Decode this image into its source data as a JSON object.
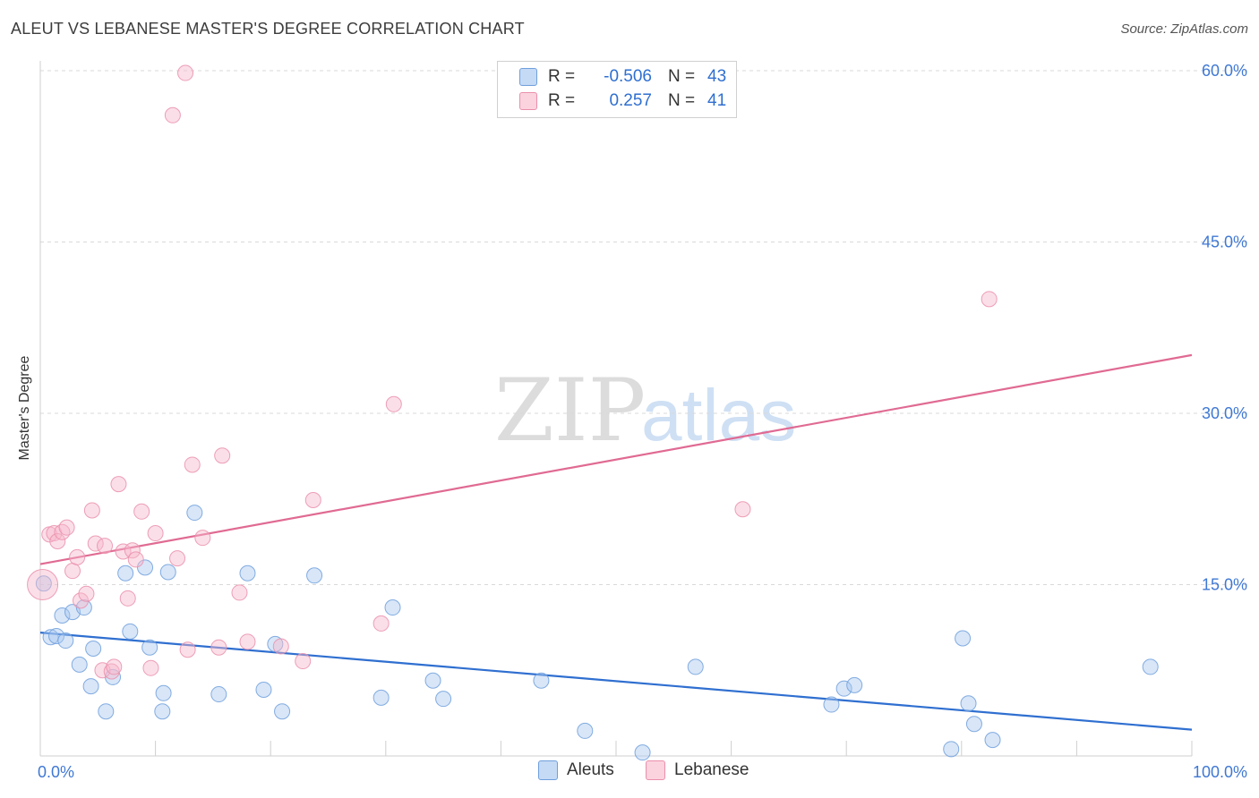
{
  "title": "ALEUT VS LEBANESE MASTER'S DEGREE CORRELATION CHART",
  "source": "Source: ZipAtlas.com",
  "watermark": {
    "zip": "ZIP",
    "atlas": "atlas"
  },
  "legend_top": {
    "rows": [
      {
        "r_label": "R =",
        "r_value": "-0.506",
        "n_label": "N =",
        "n_value": "43"
      },
      {
        "r_label": "R =",
        "r_value": "0.257",
        "n_label": "N =",
        "n_value": "41"
      }
    ]
  },
  "legend_bottom": {
    "aleuts": "Aleuts",
    "lebanese": "Lebanese"
  },
  "colors": {
    "aleuts_fill": "#a9c8f0",
    "aleuts_stroke": "#6f9fdc",
    "aleuts_line": "#2f6fd0",
    "lebanese_fill": "#f6b8cb",
    "lebanese_stroke": "#ea8fab",
    "lebanese_line": "#e06a93",
    "tick_label": "#3f78d4",
    "grid": "#d9d9d9"
  },
  "chart_data": {
    "type": "scatter",
    "title": "ALEUT VS LEBANESE MASTER'S DEGREE CORRELATION CHART",
    "xlabel": "",
    "ylabel": "Master's Degree",
    "xlim": [
      0,
      100
    ],
    "ylim": [
      0,
      60
    ],
    "x_tick_labels": [
      "0.0%",
      "100.0%"
    ],
    "y_ticks": [
      15,
      30,
      45,
      60
    ],
    "y_tick_labels": [
      "15.0%",
      "30.0%",
      "45.0%",
      "60.0%"
    ],
    "series": [
      {
        "name": "Aleuts",
        "color": "#2f6fd0",
        "r": -0.506,
        "n": 43,
        "trend": {
          "x": [
            0,
            100
          ],
          "y": [
            10.8,
            2.3
          ]
        },
        "points": [
          {
            "x": 0.3,
            "y": 15.1
          },
          {
            "x": 0.9,
            "y": 10.4
          },
          {
            "x": 1.4,
            "y": 10.5
          },
          {
            "x": 1.9,
            "y": 12.3
          },
          {
            "x": 2.2,
            "y": 10.1
          },
          {
            "x": 2.8,
            "y": 12.6
          },
          {
            "x": 3.4,
            "y": 8.0
          },
          {
            "x": 3.8,
            "y": 13.0
          },
          {
            "x": 4.4,
            "y": 6.1
          },
          {
            "x": 4.6,
            "y": 9.4
          },
          {
            "x": 5.7,
            "y": 3.9
          },
          {
            "x": 6.3,
            "y": 6.9
          },
          {
            "x": 7.4,
            "y": 16.0
          },
          {
            "x": 7.8,
            "y": 10.9
          },
          {
            "x": 9.1,
            "y": 16.5
          },
          {
            "x": 9.5,
            "y": 9.5
          },
          {
            "x": 10.7,
            "y": 5.5
          },
          {
            "x": 10.6,
            "y": 3.9
          },
          {
            "x": 11.1,
            "y": 16.1
          },
          {
            "x": 13.4,
            "y": 21.3
          },
          {
            "x": 15.5,
            "y": 5.4
          },
          {
            "x": 18.0,
            "y": 16.0
          },
          {
            "x": 19.4,
            "y": 5.8
          },
          {
            "x": 20.4,
            "y": 9.8
          },
          {
            "x": 21.0,
            "y": 3.9
          },
          {
            "x": 23.8,
            "y": 15.8
          },
          {
            "x": 29.6,
            "y": 5.1
          },
          {
            "x": 30.6,
            "y": 13.0
          },
          {
            "x": 34.1,
            "y": 6.6
          },
          {
            "x": 35.0,
            "y": 5.0
          },
          {
            "x": 43.5,
            "y": 6.6
          },
          {
            "x": 47.3,
            "y": 2.2
          },
          {
            "x": 52.3,
            "y": 0.3
          },
          {
            "x": 56.9,
            "y": 7.8
          },
          {
            "x": 68.7,
            "y": 4.5
          },
          {
            "x": 69.8,
            "y": 5.9
          },
          {
            "x": 70.7,
            "y": 6.2
          },
          {
            "x": 79.1,
            "y": 0.6
          },
          {
            "x": 80.1,
            "y": 10.3
          },
          {
            "x": 80.6,
            "y": 4.6
          },
          {
            "x": 81.1,
            "y": 2.8
          },
          {
            "x": 82.7,
            "y": 1.4
          },
          {
            "x": 96.4,
            "y": 7.8
          }
        ]
      },
      {
        "name": "Lebanese",
        "color": "#e06a93",
        "r": 0.257,
        "n": 41,
        "trend": {
          "x": [
            0,
            100
          ],
          "y": [
            16.8,
            35.1
          ]
        },
        "points": [
          {
            "x": 0.2,
            "y": 15.0,
            "large": true
          },
          {
            "x": 0.8,
            "y": 19.4
          },
          {
            "x": 1.2,
            "y": 19.5
          },
          {
            "x": 1.5,
            "y": 18.8
          },
          {
            "x": 1.9,
            "y": 19.6
          },
          {
            "x": 2.3,
            "y": 20.0
          },
          {
            "x": 2.8,
            "y": 16.2
          },
          {
            "x": 3.2,
            "y": 17.4
          },
          {
            "x": 3.5,
            "y": 13.6
          },
          {
            "x": 4.0,
            "y": 14.2
          },
          {
            "x": 4.5,
            "y": 21.5
          },
          {
            "x": 4.8,
            "y": 18.6
          },
          {
            "x": 5.4,
            "y": 7.5
          },
          {
            "x": 5.6,
            "y": 18.4
          },
          {
            "x": 6.2,
            "y": 7.4
          },
          {
            "x": 6.4,
            "y": 7.8
          },
          {
            "x": 6.8,
            "y": 23.8
          },
          {
            "x": 7.2,
            "y": 17.9
          },
          {
            "x": 7.6,
            "y": 13.8
          },
          {
            "x": 8.0,
            "y": 18.0
          },
          {
            "x": 8.3,
            "y": 17.2
          },
          {
            "x": 8.8,
            "y": 21.4
          },
          {
            "x": 9.6,
            "y": 7.7
          },
          {
            "x": 10.0,
            "y": 19.5
          },
          {
            "x": 11.5,
            "y": 56.1
          },
          {
            "x": 11.9,
            "y": 17.3
          },
          {
            "x": 12.6,
            "y": 59.8
          },
          {
            "x": 12.8,
            "y": 9.3
          },
          {
            "x": 13.2,
            "y": 25.5
          },
          {
            "x": 14.1,
            "y": 19.1
          },
          {
            "x": 15.5,
            "y": 9.5
          },
          {
            "x": 15.8,
            "y": 26.3
          },
          {
            "x": 17.3,
            "y": 14.3
          },
          {
            "x": 18.0,
            "y": 10.0
          },
          {
            "x": 20.9,
            "y": 9.6
          },
          {
            "x": 22.8,
            "y": 8.3
          },
          {
            "x": 23.7,
            "y": 22.4
          },
          {
            "x": 29.6,
            "y": 11.6
          },
          {
            "x": 30.7,
            "y": 30.8
          },
          {
            "x": 61.0,
            "y": 21.6
          },
          {
            "x": 82.4,
            "y": 40.0
          }
        ]
      }
    ]
  }
}
